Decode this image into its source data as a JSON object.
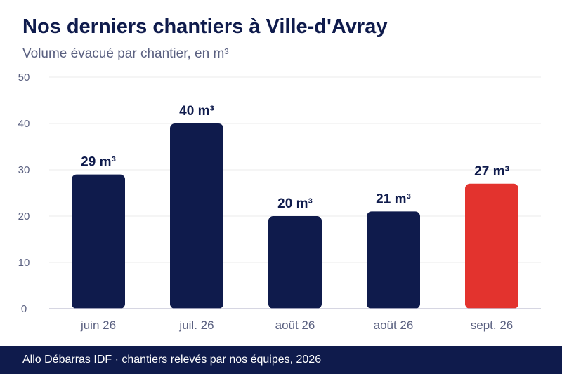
{
  "header": {
    "title": "Nos derniers chantiers à Ville-d'Avray",
    "subtitle": "Volume évacué par chantier, en m³"
  },
  "footer": {
    "text": "Allo Débarras IDF · chantiers relevés par nos équipes, 2026"
  },
  "colors": {
    "bar": "#0f1b4c",
    "highlight": "#e3332e",
    "grid": "#ebebeb",
    "axis": "#c8c8d8",
    "tick_text": "#5a6080",
    "label_text": "#0f1b4c"
  },
  "chart_data": {
    "type": "bar",
    "title": "Nos derniers chantiers à Ville-d'Avray",
    "subtitle": "Volume évacué par chantier, en m³",
    "categories": [
      "juin 26",
      "juil. 26",
      "août 26",
      "août 26",
      "sept. 26"
    ],
    "values": [
      29,
      40,
      20,
      21,
      27
    ],
    "data_labels": [
      "29 m³",
      "40 m³",
      "20 m³",
      "21 m³",
      "27 m³"
    ],
    "highlight_index": 4,
    "ylim": [
      0,
      50
    ],
    "yticks": [
      0,
      10,
      20,
      30,
      40,
      50
    ],
    "grid": true
  }
}
